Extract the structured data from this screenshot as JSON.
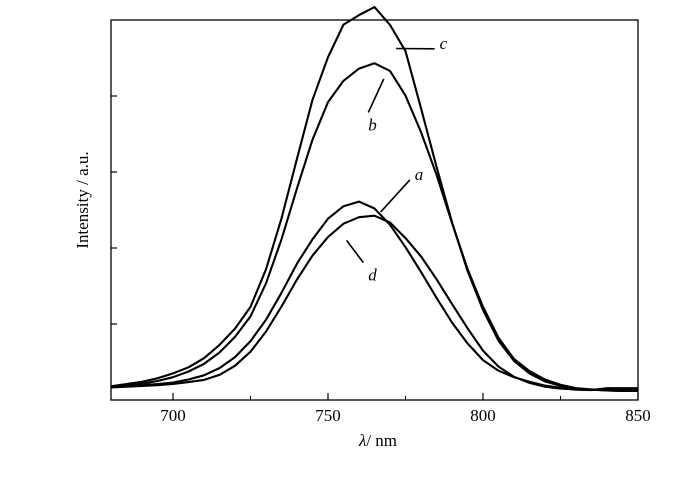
{
  "chart_data": {
    "type": "line",
    "xlabel_symbol": "λ",
    "xlabel_unit": "/ nm",
    "ylabel": "Intensity / a.u.",
    "xlim": [
      680,
      850
    ],
    "ylim": [
      0,
      100
    ],
    "x_ticks": [
      700,
      750,
      800,
      850
    ],
    "x_tick_labels": [
      "700",
      "750",
      "800",
      "850"
    ],
    "y_ticks": [
      20,
      40,
      60,
      80
    ],
    "y_tick_labels": [],
    "grid": false,
    "x": [
      680,
      685,
      690,
      695,
      700,
      705,
      710,
      715,
      720,
      725,
      730,
      735,
      740,
      745,
      750,
      755,
      760,
      765,
      770,
      775,
      780,
      785,
      790,
      795,
      800,
      805,
      810,
      815,
      820,
      825,
      830,
      835,
      840,
      845,
      850
    ],
    "series": [
      {
        "name": "a",
        "values": [
          3.4,
          3.6,
          3.9,
          4.2,
          4.6,
          5.4,
          6.5,
          8.4,
          11.3,
          15.5,
          21.1,
          28.2,
          35.9,
          42.3,
          47.7,
          51.0,
          52.2,
          50.4,
          46.1,
          40.2,
          33.7,
          26.9,
          20.4,
          14.9,
          10.5,
          7.7,
          6.0,
          4.8,
          3.8,
          3.2,
          2.7,
          2.6,
          3.1,
          3.1,
          3.1
        ]
      },
      {
        "name": "b",
        "values": [
          3.6,
          3.9,
          4.3,
          5.0,
          6.0,
          7.5,
          9.5,
          12.5,
          16.6,
          22.0,
          30.7,
          42.3,
          55.7,
          68.5,
          78.4,
          84.0,
          87.2,
          88.6,
          86.6,
          80.1,
          70.5,
          59.3,
          46.6,
          34.5,
          24.5,
          16.4,
          10.8,
          7.6,
          5.4,
          4.0,
          3.1,
          2.8,
          2.5,
          2.4,
          2.4
        ]
      },
      {
        "name": "c",
        "values": [
          3.6,
          4.2,
          4.8,
          5.7,
          7.0,
          8.6,
          11.0,
          14.5,
          18.8,
          24.5,
          34.4,
          47.8,
          63.5,
          79.0,
          90.2,
          98.8,
          101.3,
          103.4,
          98.7,
          91.8,
          76.8,
          61.4,
          46.8,
          34.0,
          23.7,
          15.6,
          10.3,
          7.0,
          4.9,
          3.7,
          3.0,
          2.7,
          2.5,
          2.4,
          2.4
        ]
      },
      {
        "name": "d",
        "values": [
          3.3,
          3.5,
          3.7,
          3.9,
          4.2,
          4.7,
          5.3,
          6.6,
          9.0,
          12.7,
          18.0,
          24.6,
          31.7,
          38.0,
          42.9,
          46.4,
          48.1,
          48.5,
          46.7,
          42.6,
          37.8,
          31.8,
          25.3,
          18.9,
          13.0,
          8.8,
          6.1,
          4.5,
          3.5,
          3.0,
          2.8,
          2.7,
          2.7,
          2.7,
          2.7
        ]
      }
    ],
    "annotations": [
      {
        "text": "a",
        "series": "a",
        "point_x": 767,
        "point_y": 49.5,
        "text_x": 778,
        "text_y": 59.5
      },
      {
        "text": "b",
        "series": "b",
        "point_x": 768,
        "point_y": 84.5,
        "text_x": 763,
        "text_y": 72.5
      },
      {
        "text": "c",
        "series": "c",
        "point_x": 772,
        "point_y": 92.5,
        "text_x": 786,
        "text_y": 94
      },
      {
        "text": "d",
        "series": "d",
        "point_x": 756,
        "point_y": 42,
        "text_x": 763,
        "text_y": 33
      }
    ]
  }
}
